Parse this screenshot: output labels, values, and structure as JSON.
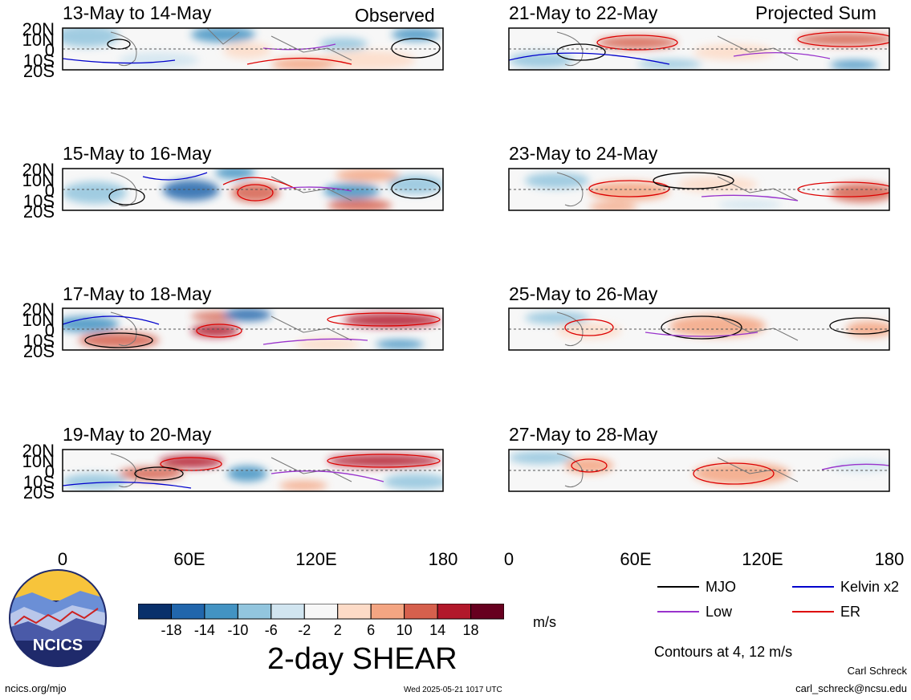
{
  "headers": {
    "left": "Observed",
    "right": "Projected Sum"
  },
  "panels_left": [
    {
      "title": "13-May to 14-May"
    },
    {
      "title": "15-May to 16-May"
    },
    {
      "title": "17-May to 18-May"
    },
    {
      "title": "19-May to 20-May"
    }
  ],
  "panels_right": [
    {
      "title": "21-May to 22-May"
    },
    {
      "title": "23-May to 24-May"
    },
    {
      "title": "25-May to 26-May"
    },
    {
      "title": "27-May to 28-May"
    }
  ],
  "lat_labels": [
    "20N",
    "10N",
    "0",
    "10S",
    "20S"
  ],
  "lon_labels": [
    "0",
    "60E",
    "120E",
    "180"
  ],
  "colorbar": {
    "labels": [
      "-18",
      "-14",
      "-10",
      "-6",
      "-2",
      "2",
      "6",
      "10",
      "14",
      "18"
    ],
    "colors": [
      "#08306b",
      "#2166ac",
      "#4393c3",
      "#92c5de",
      "#d1e5f0",
      "#f7f7f7",
      "#fddbc7",
      "#f4a582",
      "#d6604d",
      "#b2182b",
      "#67001f"
    ],
    "units": "m/s",
    "title": "2-day SHEAR"
  },
  "legend": [
    {
      "label": "MJO",
      "color": "#000000"
    },
    {
      "label": "Kelvin x2",
      "color": "#0000cc"
    },
    {
      "label": "Low",
      "color": "#9933cc"
    },
    {
      "label": "ER",
      "color": "#dd0000"
    }
  ],
  "contours_note": "Contours at 4, 12 m/s",
  "logo_text": "NCICS",
  "site": "ncics.org/mjo",
  "timestamp": "Wed 2025-05-21 1017 UTC",
  "author": "Carl Schreck",
  "email": "carl_schreck@ncsu.edu"
}
